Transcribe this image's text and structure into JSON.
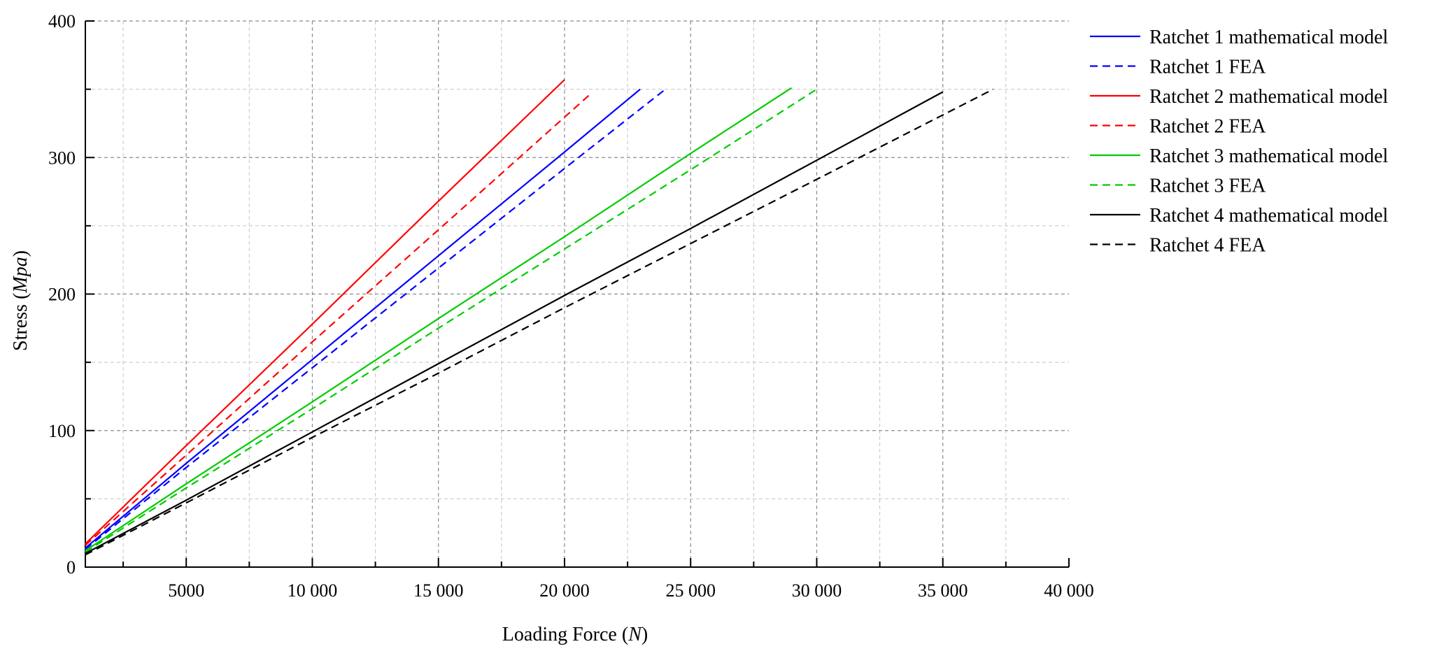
{
  "chart_data": {
    "type": "line",
    "xlabel_prefix": "Loading Force (",
    "xlabel_unit": "N",
    "xlabel_suffix": ")",
    "ylabel_prefix": "Stress (",
    "ylabel_unit": "Mpa",
    "ylabel_suffix": ")",
    "xlim": [
      1000,
      40000
    ],
    "ylim": [
      0,
      400
    ],
    "x_ticks": [
      5000,
      10000,
      15000,
      20000,
      25000,
      30000,
      35000,
      40000
    ],
    "x_tick_labels": [
      "5000",
      "10 000",
      "15 000",
      "20 000",
      "25 000",
      "30 000",
      "35 000",
      "40 000"
    ],
    "y_ticks": [
      0,
      100,
      200,
      300,
      400
    ],
    "y_tick_labels": [
      "0",
      "100",
      "200",
      "300",
      "400"
    ],
    "grid": true,
    "legend_position": "right",
    "series": [
      {
        "name": "Ratchet 1 mathematical model",
        "color": "#0000ff",
        "dashed": false,
        "x": [
          1000,
          5000,
          10000,
          15000,
          20000,
          23000
        ],
        "y": [
          14,
          76,
          152,
          228,
          304,
          350
        ]
      },
      {
        "name": "Ratchet 1 FEA",
        "color": "#0000ff",
        "dashed": true,
        "x": [
          1000,
          5000,
          10000,
          15000,
          20000,
          24000
        ],
        "y": [
          13,
          73,
          146,
          219,
          292,
          350
        ]
      },
      {
        "name": "Ratchet 2 mathematical model",
        "color": "#ff0000",
        "dashed": false,
        "x": [
          1000,
          5000,
          10000,
          15000,
          20000
        ],
        "y": [
          17,
          89,
          178,
          268,
          357
        ]
      },
      {
        "name": "Ratchet 2 FEA",
        "color": "#ff0000",
        "dashed": true,
        "x": [
          1000,
          5000,
          10000,
          15000,
          21000
        ],
        "y": [
          16,
          82,
          165,
          247,
          346
        ]
      },
      {
        "name": "Ratchet 3 mathematical model",
        "color": "#00cc00",
        "dashed": false,
        "x": [
          1000,
          5000,
          10000,
          15000,
          20000,
          25000,
          29000
        ],
        "y": [
          12,
          61,
          121,
          182,
          242,
          303,
          351
        ]
      },
      {
        "name": "Ratchet 3 FEA",
        "color": "#00cc00",
        "dashed": true,
        "x": [
          1000,
          5000,
          10000,
          15000,
          20000,
          25000,
          30000
        ],
        "y": [
          11,
          58,
          116,
          175,
          233,
          291,
          350
        ]
      },
      {
        "name": "Ratchet 4 mathematical model",
        "color": "#000000",
        "dashed": false,
        "x": [
          1000,
          5000,
          10000,
          15000,
          20000,
          25000,
          30000,
          35000
        ],
        "y": [
          10,
          49,
          99,
          149,
          199,
          248,
          298,
          348
        ]
      },
      {
        "name": "Ratchet 4 FEA",
        "color": "#000000",
        "dashed": true,
        "x": [
          1000,
          5000,
          10000,
          15000,
          20000,
          25000,
          30000,
          37000
        ],
        "y": [
          9,
          47,
          95,
          142,
          190,
          237,
          284,
          350
        ]
      }
    ]
  }
}
